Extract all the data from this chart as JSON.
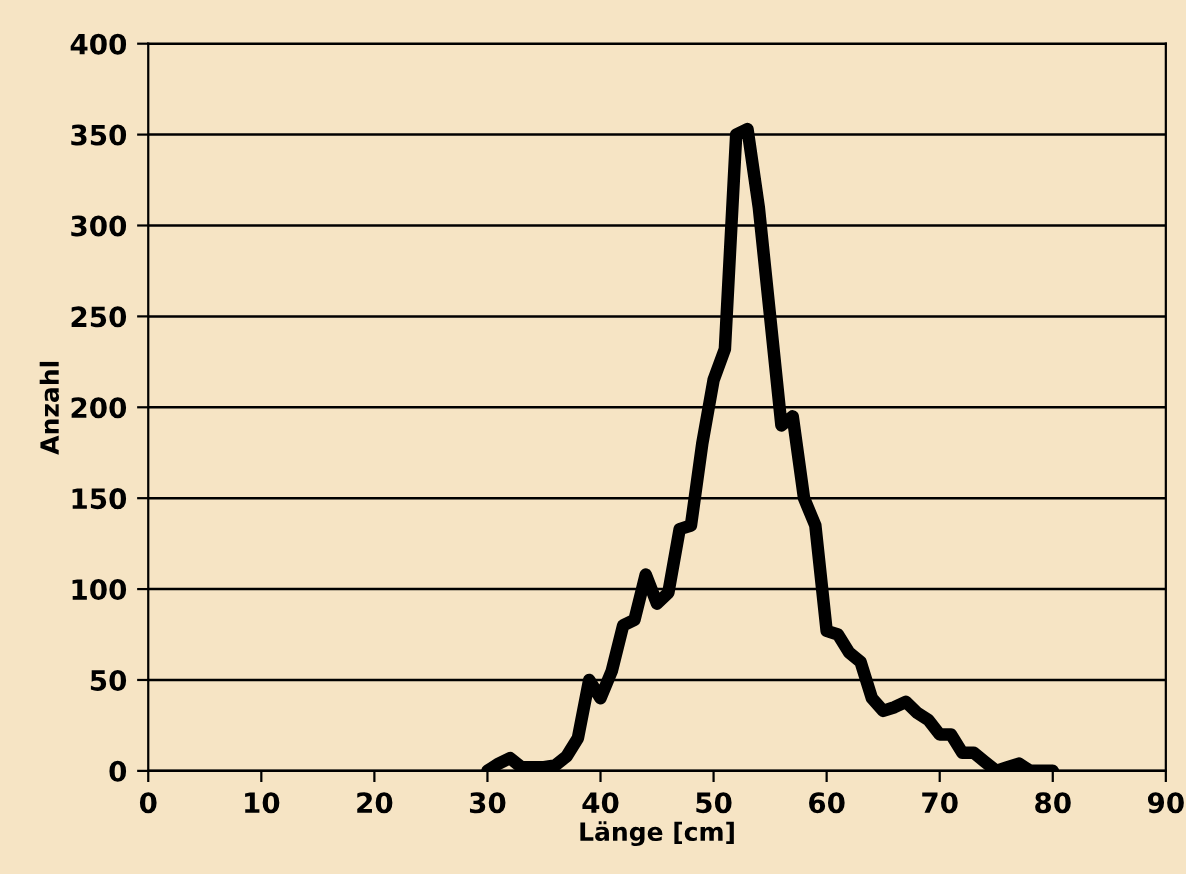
{
  "chart_data": {
    "type": "line",
    "xlabel": "Länge [cm]",
    "ylabel": "Anzahl",
    "x": [
      30,
      31,
      32,
      33,
      34,
      35,
      36,
      37,
      38,
      39,
      40,
      41,
      42,
      43,
      44,
      45,
      46,
      47,
      48,
      49,
      50,
      51,
      52,
      53,
      54,
      55,
      56,
      57,
      58,
      59,
      60,
      61,
      62,
      63,
      64,
      65,
      66,
      67,
      68,
      69,
      70,
      71,
      72,
      73,
      74,
      75,
      76,
      77,
      78,
      79,
      80
    ],
    "series": [
      {
        "color": "#000000",
        "values": [
          0,
          4,
          7,
          2,
          2,
          2,
          3,
          8,
          18,
          50,
          40,
          55,
          80,
          83,
          108,
          92,
          98,
          133,
          135,
          180,
          215,
          232,
          350,
          353,
          310,
          250,
          190,
          195,
          150,
          135,
          77,
          75,
          65,
          60,
          40,
          33,
          35,
          38,
          32,
          28,
          20,
          20,
          10,
          10,
          5,
          0,
          2,
          4,
          0,
          0,
          0
        ]
      }
    ],
    "xlim": [
      0,
      90
    ],
    "xticks": [
      0,
      10,
      20,
      30,
      40,
      50,
      60,
      70,
      80,
      90
    ],
    "ylim": [
      0,
      400
    ],
    "yticks": [
      0,
      50,
      100,
      150,
      200,
      250,
      300,
      350,
      400
    ],
    "grid": "y",
    "legend": false,
    "marker": "none",
    "line_style": "solid"
  }
}
